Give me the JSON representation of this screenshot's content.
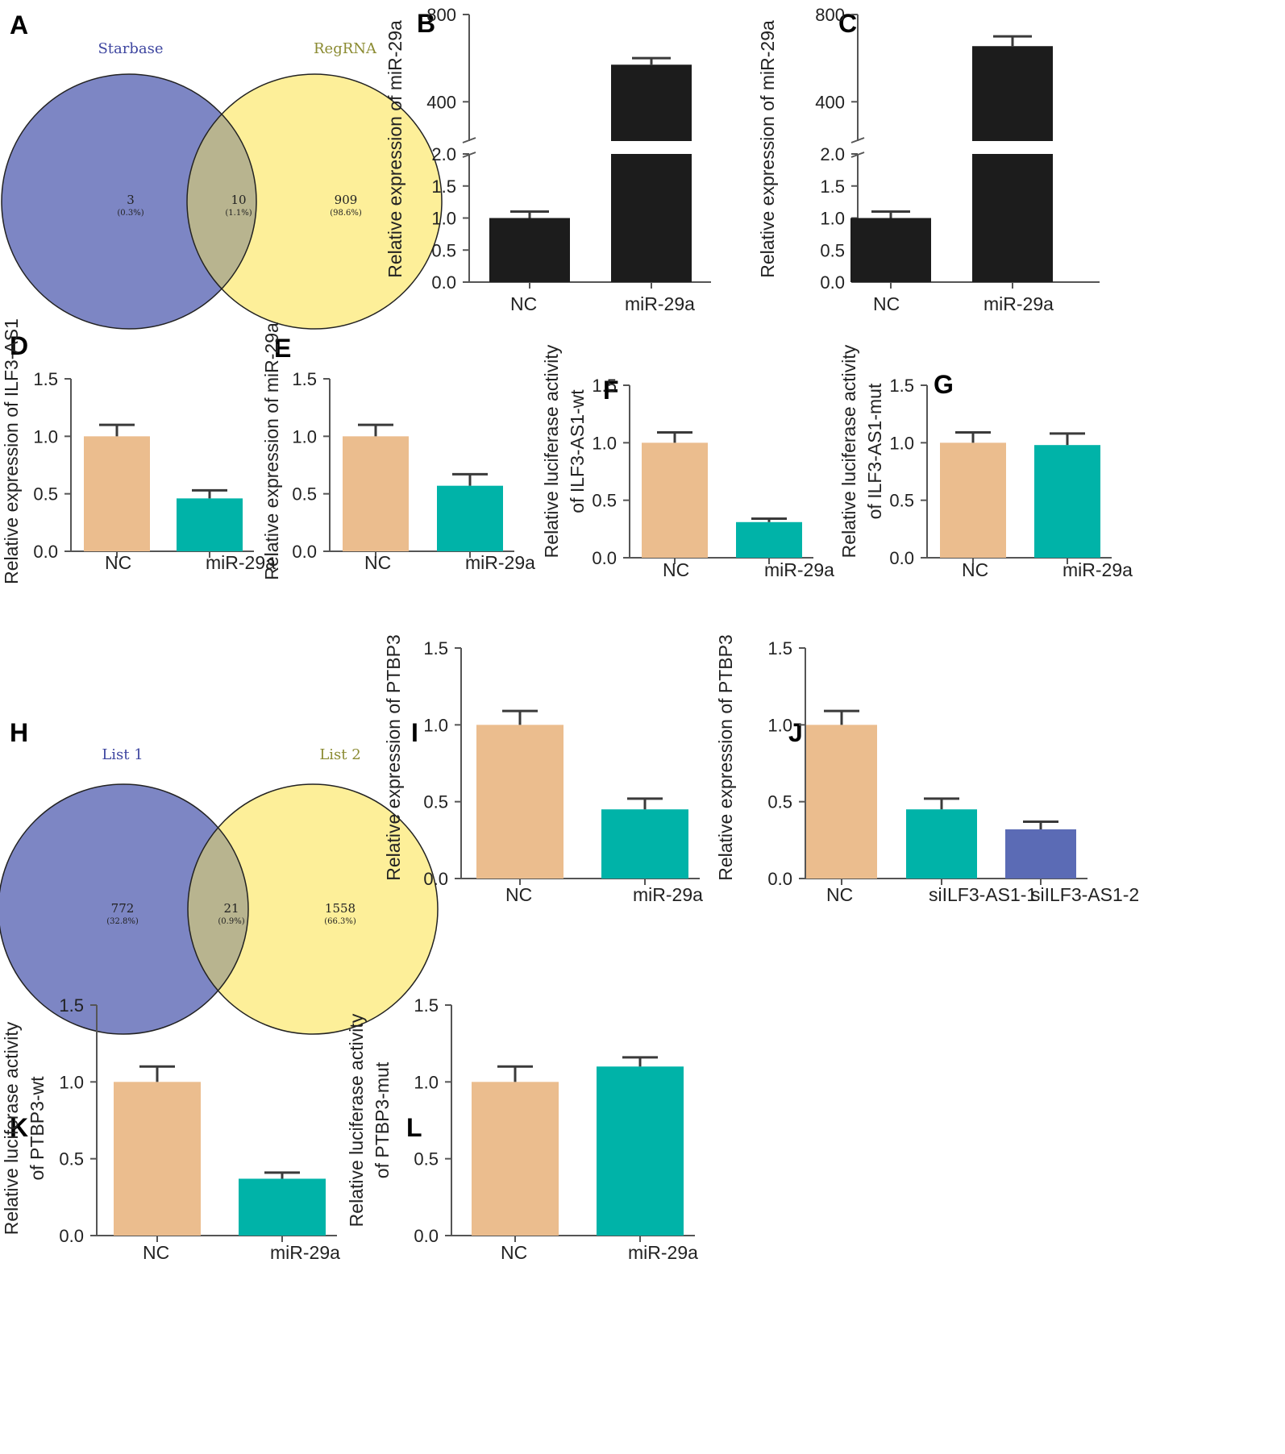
{
  "colors": {
    "black": "#1c1c1c",
    "peach": "#ebbd8e",
    "teal": "#00b3a8",
    "blue": "#5b6bb5",
    "error": "#3a3a3a",
    "venn_left": "#7d86c4",
    "venn_right": "#fdef99",
    "venn_overlap": "#b8b48f",
    "venn_left_label": "#3e46a0",
    "venn_right_label": "#8b8b32"
  },
  "venn": [
    {
      "panel": "A",
      "left_label": "Starbase",
      "right_label": "RegRNA",
      "left_count": "3",
      "left_pct": "(0.3%)",
      "overlap_count": "10",
      "overlap_pct": "(1.1%)",
      "right_count": "909",
      "right_pct": "(98.6%)"
    },
    {
      "panel": "H",
      "left_label": "List 1",
      "right_label": "List 2",
      "left_count": "772",
      "left_pct": "(32.8%)",
      "overlap_count": "21",
      "overlap_pct": "(0.9%)",
      "right_count": "1558",
      "right_pct": "(66.3%)"
    }
  ],
  "chart_data": [
    {
      "panel": "B",
      "type": "bar",
      "axis_break": true,
      "ylabel": [
        "Relative expression of miR-29a"
      ],
      "categories": [
        "NC",
        "miR-29a"
      ],
      "values": [
        1.0,
        570
      ],
      "errors": [
        0.1,
        30
      ],
      "bar_colors": [
        "#1c1c1c",
        "#1c1c1c"
      ],
      "lower_ticks": [
        "0.0",
        "0.5",
        "1.0",
        "1.5",
        "2.0"
      ],
      "upper_ticks": [
        "400",
        "800"
      ],
      "ylim_lower": [
        0,
        2.0
      ],
      "ylim_upper": [
        220,
        800
      ]
    },
    {
      "panel": "C",
      "type": "bar",
      "axis_break": true,
      "ylabel": [
        "Relative expression of miR-29a"
      ],
      "categories": [
        "NC",
        "miR-29a"
      ],
      "values": [
        1.0,
        655
      ],
      "errors": [
        0.1,
        45
      ],
      "bar_colors": [
        "#1c1c1c",
        "#1c1c1c"
      ],
      "lower_ticks": [
        "0.0",
        "0.5",
        "1.0",
        "1.5",
        "2.0"
      ],
      "upper_ticks": [
        "400",
        "800"
      ],
      "ylim_lower": [
        0,
        2.0
      ],
      "ylim_upper": [
        220,
        800
      ]
    },
    {
      "panel": "D",
      "type": "bar",
      "ylabel": [
        "Relative expression of ILF3-AS1"
      ],
      "categories": [
        "NC",
        "miR-29a"
      ],
      "values": [
        1.0,
        0.46
      ],
      "errors": [
        0.1,
        0.07
      ],
      "bar_colors": [
        "#ebbd8e",
        "#00b3a8"
      ],
      "ticks": [
        "0.0",
        "0.5",
        "1.0",
        "1.5"
      ],
      "ylim": [
        0,
        1.5
      ]
    },
    {
      "panel": "E",
      "type": "bar",
      "ylabel": [
        "Relative expression of miR-29a"
      ],
      "categories": [
        "NC",
        "miR-29a"
      ],
      "values": [
        1.0,
        0.57
      ],
      "errors": [
        0.1,
        0.1
      ],
      "bar_colors": [
        "#ebbd8e",
        "#00b3a8"
      ],
      "ticks": [
        "0.0",
        "0.5",
        "1.0",
        "1.5"
      ],
      "ylim": [
        0,
        1.5
      ]
    },
    {
      "panel": "F",
      "type": "bar",
      "ylabel": [
        "Relative luciferase activity",
        "of ILF3-AS1-wt"
      ],
      "categories": [
        "NC",
        "miR-29a"
      ],
      "values": [
        1.0,
        0.31
      ],
      "errors": [
        0.09,
        0.03
      ],
      "bar_colors": [
        "#ebbd8e",
        "#00b3a8"
      ],
      "ticks": [
        "0.0",
        "0.5",
        "1.0",
        "1.5"
      ],
      "ylim": [
        0,
        1.5
      ]
    },
    {
      "panel": "G",
      "type": "bar",
      "ylabel": [
        "Relative luciferase activity",
        "of ILF3-AS1-mut"
      ],
      "categories": [
        "NC",
        "miR-29a"
      ],
      "values": [
        1.0,
        0.98
      ],
      "errors": [
        0.09,
        0.1
      ],
      "bar_colors": [
        "#ebbd8e",
        "#00b3a8"
      ],
      "ticks": [
        "0.0",
        "0.5",
        "1.0",
        "1.5"
      ],
      "ylim": [
        0,
        1.5
      ]
    },
    {
      "panel": "I",
      "type": "bar",
      "ylabel": [
        "Relative expression of PTBP3"
      ],
      "categories": [
        "NC",
        "miR-29a"
      ],
      "values": [
        1.0,
        0.45
      ],
      "errors": [
        0.09,
        0.07
      ],
      "bar_colors": [
        "#ebbd8e",
        "#00b3a8"
      ],
      "ticks": [
        "0.0",
        "0.5",
        "1.0",
        "1.5"
      ],
      "ylim": [
        0,
        1.5
      ]
    },
    {
      "panel": "J",
      "type": "bar",
      "ylabel": [
        "Relative expression of PTBP3"
      ],
      "categories": [
        "NC",
        "siILF3-AS1-1",
        "siILF3-AS1-2"
      ],
      "values": [
        1.0,
        0.45,
        0.32
      ],
      "errors": [
        0.09,
        0.07,
        0.05
      ],
      "bar_colors": [
        "#ebbd8e",
        "#00b3a8",
        "#5b6bb5"
      ],
      "ticks": [
        "0.0",
        "0.5",
        "1.0",
        "1.5"
      ],
      "ylim": [
        0,
        1.5
      ]
    },
    {
      "panel": "K",
      "type": "bar",
      "ylabel": [
        "Relative luciferase activity",
        "of PTBP3-wt"
      ],
      "categories": [
        "NC",
        "miR-29a"
      ],
      "values": [
        1.0,
        0.37
      ],
      "errors": [
        0.1,
        0.04
      ],
      "bar_colors": [
        "#ebbd8e",
        "#00b3a8"
      ],
      "ticks": [
        "0.0",
        "0.5",
        "1.0",
        "1.5"
      ],
      "ylim": [
        0,
        1.5
      ]
    },
    {
      "panel": "L",
      "type": "bar",
      "ylabel": [
        "Relative luciferase activity",
        "of PTBP3-mut"
      ],
      "categories": [
        "NC",
        "miR-29a"
      ],
      "values": [
        1.0,
        1.1
      ],
      "errors": [
        0.1,
        0.06
      ],
      "bar_colors": [
        "#ebbd8e",
        "#00b3a8"
      ],
      "ticks": [
        "0.0",
        "0.5",
        "1.0",
        "1.5"
      ],
      "ylim": [
        0,
        1.5
      ]
    }
  ]
}
